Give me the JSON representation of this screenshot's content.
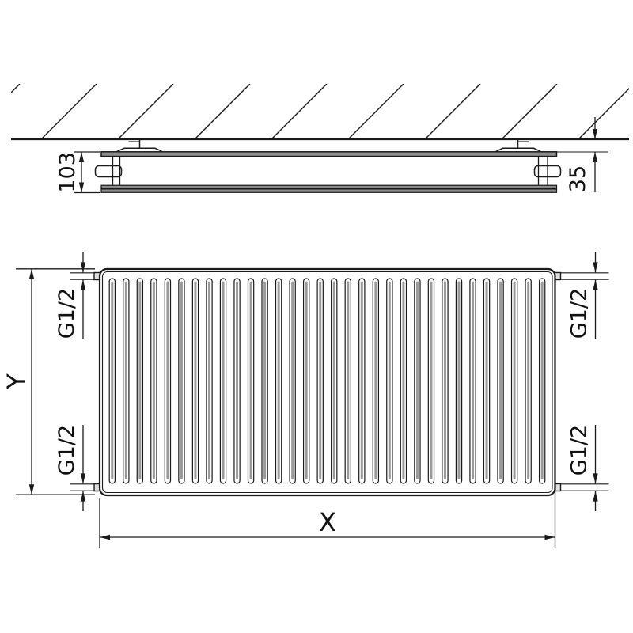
{
  "title": "Panel radiator technical drawing",
  "side_view": {
    "depth_label": "103",
    "wall_gap_label": "35"
  },
  "front_view": {
    "height_label": "Y",
    "width_label": "X",
    "connections": {
      "top_left": "G1/2",
      "top_right": "G1/2",
      "bottom_left": "G1/2",
      "bottom_right": "G1/2"
    }
  },
  "drawing": {
    "channel_count": 32,
    "hatch_line_count": 10,
    "colors": {
      "line": "#1a1a1a",
      "panel_gray": "#8a8a8a",
      "channel_gray": "#9a9a9a",
      "stub_gray": "#e0e0e0",
      "background": "#ffffff"
    }
  }
}
